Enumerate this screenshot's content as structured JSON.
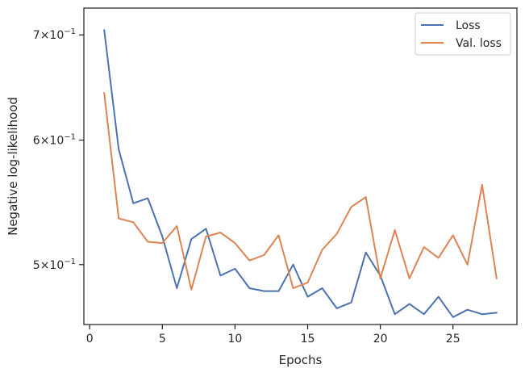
{
  "chart_data": {
    "type": "line",
    "xlabel": "Epochs",
    "ylabel": "Negative log-likelihood",
    "yscale": "log",
    "xlim": [
      -0.4,
      29.4
    ],
    "ylim": [
      0.458,
      0.728
    ],
    "grid": false,
    "legend_position": "top-right",
    "xticks": [
      0,
      5,
      10,
      15,
      20,
      25
    ],
    "xtick_labels": [
      "0",
      "5",
      "10",
      "15",
      "20",
      "25"
    ],
    "yticks": [
      0.5,
      0.6,
      0.7
    ],
    "ytick_labels": [
      {
        "base": "5",
        "mult": "×",
        "ten": "10",
        "exp": "−1"
      },
      {
        "base": "6",
        "mult": "×",
        "ten": "10",
        "exp": "−1"
      },
      {
        "base": "7",
        "mult": "×",
        "ten": "10",
        "exp": "−1"
      }
    ],
    "x": [
      1,
      2,
      3,
      4,
      5,
      6,
      7,
      8,
      9,
      10,
      11,
      12,
      13,
      14,
      15,
      16,
      17,
      18,
      19,
      20,
      21,
      22,
      23,
      24,
      25,
      26,
      27,
      28
    ],
    "series": [
      {
        "name": "Loss",
        "color": "#4c72b0",
        "values": [
          0.705,
          0.592,
          0.547,
          0.551,
          0.521,
          0.483,
          0.519,
          0.527,
          0.492,
          0.497,
          0.483,
          0.481,
          0.481,
          0.5,
          0.477,
          0.483,
          0.469,
          0.473,
          0.509,
          0.492,
          0.465,
          0.472,
          0.465,
          0.477,
          0.463,
          0.468,
          0.465,
          0.466
        ]
      },
      {
        "name": "Val. loss",
        "color": "#dd8452",
        "values": [
          0.643,
          0.535,
          0.532,
          0.517,
          0.516,
          0.529,
          0.482,
          0.521,
          0.524,
          0.516,
          0.503,
          0.507,
          0.522,
          0.483,
          0.487,
          0.511,
          0.523,
          0.544,
          0.552,
          0.49,
          0.526,
          0.49,
          0.513,
          0.505,
          0.522,
          0.5,
          0.562,
          0.49
        ]
      }
    ]
  }
}
